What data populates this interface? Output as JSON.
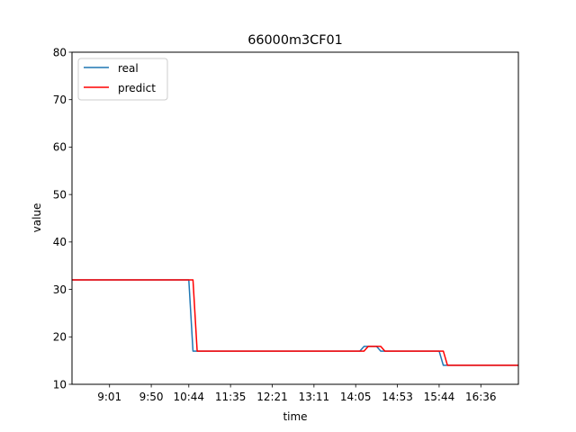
{
  "chart_data": {
    "type": "line",
    "title": "66000m3CF01",
    "xlabel": "time",
    "ylabel": "value",
    "ylim": [
      10,
      80
    ],
    "yticks": [
      10,
      20,
      30,
      40,
      50,
      60,
      70,
      80
    ],
    "x_index_range": [
      0,
      107
    ],
    "xticks": [
      {
        "i": 9,
        "label": "9:01"
      },
      {
        "i": 19,
        "label": "9:50"
      },
      {
        "i": 28,
        "label": "10:44"
      },
      {
        "i": 38,
        "label": "11:35"
      },
      {
        "i": 48,
        "label": "12:21"
      },
      {
        "i": 58,
        "label": "13:11"
      },
      {
        "i": 68,
        "label": "14:05"
      },
      {
        "i": 78,
        "label": "14:53"
      },
      {
        "i": 88,
        "label": "15:44"
      },
      {
        "i": 98,
        "label": "16:36"
      }
    ],
    "legend_position": "top-left",
    "grid": false,
    "series": [
      {
        "name": "real",
        "color": "#1f77b4",
        "points": [
          [
            0,
            32
          ],
          [
            28,
            32
          ],
          [
            29,
            17
          ],
          [
            69,
            17
          ],
          [
            70,
            18
          ],
          [
            73,
            18
          ],
          [
            74,
            17
          ],
          [
            88,
            17
          ],
          [
            89,
            14
          ],
          [
            107,
            14
          ]
        ]
      },
      {
        "name": "predict",
        "color": "#ff0000",
        "points": [
          [
            0,
            32
          ],
          [
            29,
            32
          ],
          [
            30,
            17
          ],
          [
            70,
            17
          ],
          [
            71,
            18
          ],
          [
            74,
            18
          ],
          [
            75,
            17
          ],
          [
            89,
            17
          ],
          [
            90,
            14
          ],
          [
            107,
            14
          ]
        ]
      }
    ]
  }
}
